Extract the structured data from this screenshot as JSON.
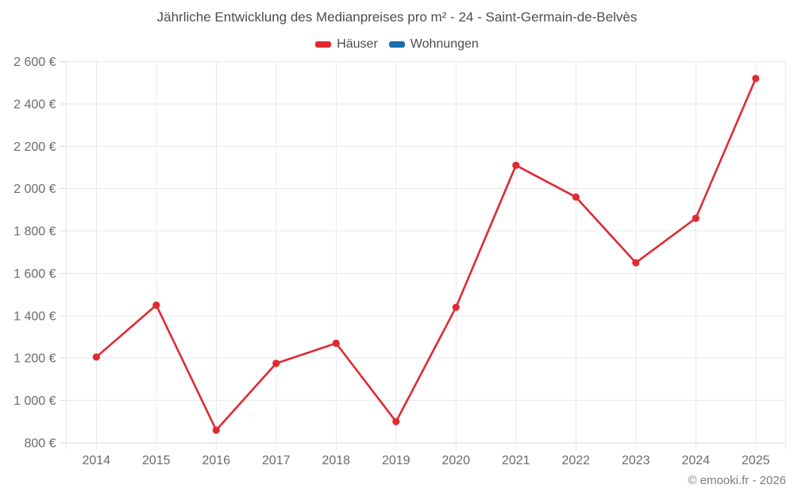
{
  "title": "Jährliche Entwicklung des Medianpreises pro m² - 24 - Saint-Germain-de-Belvès",
  "copyright": "© emooki.fr - 2026",
  "chart_data": {
    "type": "line",
    "title": "Jährliche Entwicklung des Medianpreises pro m² - 24 - Saint-Germain-de-Belvès",
    "categories": [
      "2014",
      "2015",
      "2016",
      "2017",
      "2018",
      "2019",
      "2020",
      "2021",
      "2022",
      "2023",
      "2024",
      "2025"
    ],
    "series": [
      {
        "name": "Häuser",
        "color": "#e02a32",
        "values": [
          1205,
          1450,
          860,
          1175,
          1270,
          900,
          1440,
          2110,
          1960,
          1650,
          1860,
          2520
        ]
      },
      {
        "name": "Wohnungen",
        "color": "#1a6eab",
        "values": []
      }
    ],
    "ylim": [
      800,
      2600
    ],
    "ytick_step": 200,
    "ytick_labels": [
      "800 €",
      "1 000 €",
      "1 200 €",
      "1 400 €",
      "1 600 €",
      "1 800 €",
      "2 000 €",
      "2 200 €",
      "2 400 €",
      "2 600 €"
    ],
    "xlabel": "",
    "ylabel": "",
    "grid": true,
    "legend_position": "top",
    "colors": {
      "grid": "#e9e9e9",
      "axis_line": "#d6d6d6",
      "title_text": "#4d4d4d",
      "axis_text": "#6b6b6b",
      "copyright_text": "#7d7d7d",
      "background": "#ffffff"
    }
  }
}
